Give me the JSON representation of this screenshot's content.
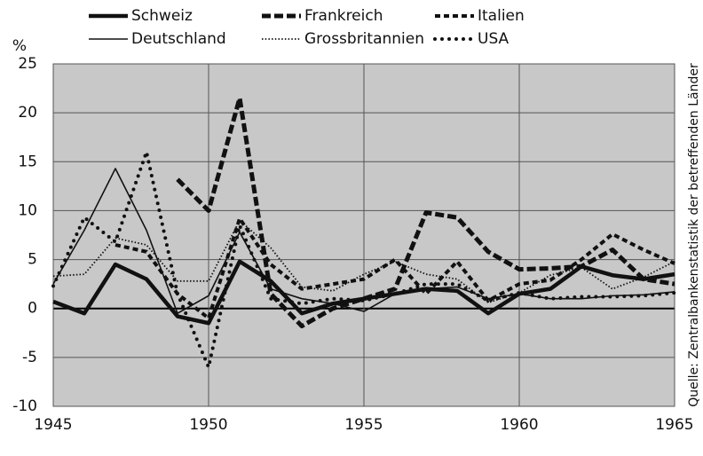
{
  "chart_data": {
    "type": "line",
    "y_label": "%",
    "source": "Quelle: Zentralbankenstatistik der betreffenden Länder",
    "x": [
      1945,
      1946,
      1947,
      1948,
      1949,
      1950,
      1951,
      1952,
      1953,
      1954,
      1955,
      1956,
      1957,
      1958,
      1959,
      1960,
      1961,
      1962,
      1963,
      1964,
      1965
    ],
    "xlim": [
      1945,
      1965
    ],
    "xticks": [
      1945,
      1950,
      1955,
      1960,
      1965
    ],
    "ylim": [
      -10,
      25
    ],
    "yticks": [
      -10,
      -5,
      0,
      5,
      10,
      15,
      20,
      25
    ],
    "grid": true,
    "series": [
      {
        "name": "Schweiz",
        "color": "#111111",
        "values": [
          0.7,
          -0.5,
          4.5,
          3,
          -0.8,
          -1.5,
          4.8,
          2.8,
          -0.5,
          0.5,
          1,
          1.5,
          2,
          1.8,
          -0.5,
          1.5,
          2,
          4.3,
          3.4,
          3,
          3.5
        ]
      },
      {
        "name": "Frankreich",
        "color": "#111111",
        "values": [
          null,
          null,
          null,
          null,
          13.2,
          10,
          21.5,
          1.5,
          -1.8,
          0,
          1,
          2,
          9.8,
          9.3,
          5.8,
          4,
          4.1,
          4.3,
          6,
          3,
          2.5
        ]
      },
      {
        "name": "Italien",
        "color": "#111111",
        "values": [
          null,
          null,
          6.5,
          5.8,
          1.5,
          -1,
          9.2,
          4.5,
          2,
          2.5,
          3,
          5,
          1.5,
          4.8,
          0.8,
          2.5,
          2.9,
          5,
          7.6,
          6,
          4.6
        ]
      },
      {
        "name": "Deutschland",
        "color": "#111111",
        "values": [
          2.5,
          8,
          14.3,
          8,
          -0.5,
          1.3,
          7.8,
          2,
          1,
          0.5,
          -0.3,
          1.5,
          2,
          2.2,
          1,
          1.5,
          1,
          1,
          1.3,
          1.4,
          1.7
        ]
      },
      {
        "name": "Grossbritannien",
        "color": "#111111",
        "values": [
          3.3,
          3.5,
          7.2,
          6.5,
          2.8,
          2.8,
          9,
          6.2,
          2.2,
          1.8,
          3.5,
          4.8,
          3.5,
          3,
          0.6,
          1.6,
          3.4,
          4.2,
          2,
          3.2,
          4.8
        ]
      },
      {
        "name": "USA",
        "color": "#111111",
        "values": [
          2.3,
          9.3,
          6.8,
          16,
          1.5,
          -6,
          8.5,
          1,
          0.5,
          1,
          0.8,
          1.5,
          2.5,
          2.5,
          0.8,
          1.6,
          1,
          1.2,
          1.2,
          1.3,
          1.6
        ]
      }
    ]
  }
}
